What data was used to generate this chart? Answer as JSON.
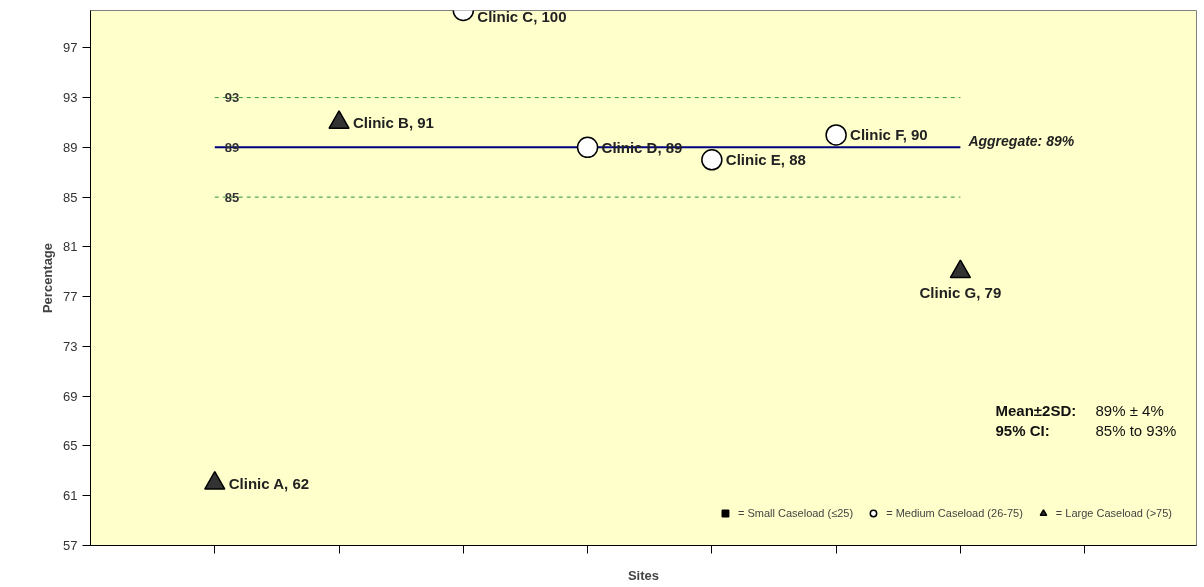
{
  "chart_data": {
    "type": "scatter",
    "xlabel": "Sites",
    "ylabel": "Percentage",
    "categories": [
      null,
      null,
      null,
      null,
      null,
      null,
      null,
      null
    ],
    "ylim": [
      57,
      100
    ],
    "yticks": [
      57,
      61,
      65,
      69,
      73,
      77,
      81,
      85,
      89,
      93,
      97
    ],
    "tick_labels": "y",
    "grid": false,
    "legend": "bottom right",
    "series": [
      {
        "name": "= Small Caseload (≤25)",
        "marker": "square",
        "color": "#000000",
        "values": [
          null,
          null,
          null,
          null,
          null,
          null,
          null,
          null
        ]
      },
      {
        "name": "= Medium Caseload (26-75)",
        "marker": "circle",
        "color": "#ffffff",
        "values": [
          null,
          null,
          100,
          89,
          88,
          90,
          null,
          null
        ],
        "value_labels": [
          null,
          null,
          "Clinic C, 100",
          "Clinic D, 89",
          "Clinic E, 88",
          "Clinic F, 90",
          null,
          null
        ]
      },
      {
        "name": "= Large Caseload (>75)",
        "marker": "triangle",
        "color": "#333333",
        "values": [
          62,
          91,
          null,
          null,
          null,
          null,
          79,
          null
        ],
        "value_labels": [
          "Clinic A, 62",
          "Clinic B, 91",
          null,
          null,
          null,
          null,
          "Clinic G, 79",
          null
        ]
      }
    ],
    "ref_lines": [
      {
        "axis": "y",
        "value": 93,
        "label": "93",
        "color": "#339933",
        "line_style": "dashed"
      },
      {
        "axis": "y",
        "value": 89,
        "label": "89",
        "color": "#000080",
        "line_style": "solid"
      },
      {
        "axis": "y",
        "value": 85,
        "label": "85",
        "color": "#339933",
        "line_style": "dashed"
      }
    ],
    "annotations": [
      "Aggregate: 89%",
      "Mean±2SD:",
      "89% ± 4%",
      "95% CI:",
      "85% to 93%"
    ]
  }
}
